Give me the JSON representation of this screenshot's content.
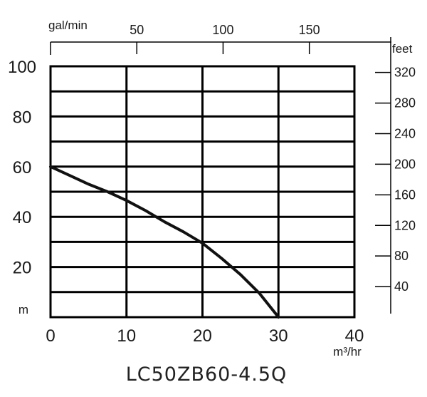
{
  "chart_data": {
    "type": "line",
    "title": "LC50ZB60-4.5Q",
    "x_axis": {
      "unit": "m³/hr",
      "range": [
        0,
        40
      ],
      "ticks": [
        "0",
        "10",
        "20",
        "30",
        "40"
      ]
    },
    "x_axis_top": {
      "unit": "gal/min",
      "ticks": [
        {
          "label": "50",
          "value": 50
        },
        {
          "label": "100",
          "value": 100
        },
        {
          "label": "150",
          "value": 150
        }
      ]
    },
    "y_axis_left": {
      "unit": "m",
      "range": [
        0,
        100
      ],
      "ticks": [
        {
          "label": "100",
          "value": 100
        },
        {
          "label": "80",
          "value": 80
        },
        {
          "label": "60",
          "value": 60
        },
        {
          "label": "40",
          "value": 40
        },
        {
          "label": "20",
          "value": 20
        }
      ]
    },
    "y_axis_right": {
      "unit": "feet",
      "ticks": [
        {
          "label": "320",
          "value": 320
        },
        {
          "label": "280",
          "value": 280
        },
        {
          "label": "240",
          "value": 240
        },
        {
          "label": "200",
          "value": 200
        },
        {
          "label": "160",
          "value": 160
        },
        {
          "label": "120",
          "value": 120
        },
        {
          "label": "80",
          "value": 80
        },
        {
          "label": "40",
          "value": 40
        }
      ]
    },
    "grid": {
      "x_step": 10,
      "y_step": 10
    },
    "series": [
      {
        "color": "#111111",
        "x": [
          0,
          2.5,
          5,
          7.5,
          10,
          12.5,
          15,
          17.5,
          20,
          22.5,
          25,
          27.5,
          30
        ],
        "y": [
          60,
          56.5,
          53,
          50,
          46.5,
          42.5,
          38,
          34,
          29.5,
          23.5,
          17,
          9.5,
          0
        ]
      }
    ]
  }
}
